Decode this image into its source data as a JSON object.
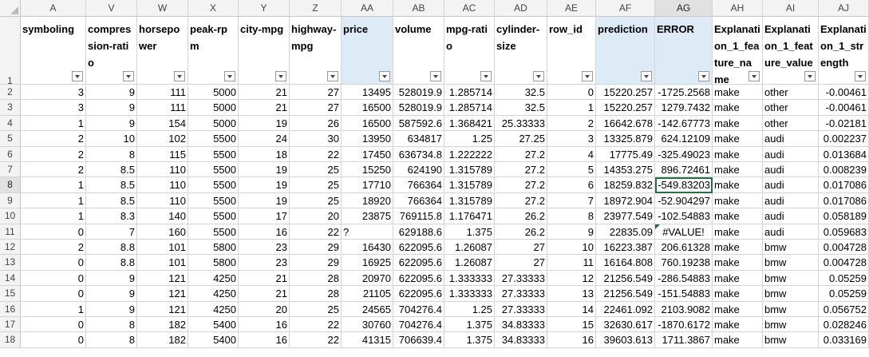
{
  "columns": [
    {
      "letter": "A",
      "header": "symboling",
      "blue": false,
      "align": "num"
    },
    {
      "letter": "V",
      "header": "compres sion-ratio",
      "blue": false,
      "align": "num"
    },
    {
      "letter": "W",
      "header": "horsepo wer",
      "blue": false,
      "align": "num"
    },
    {
      "letter": "X",
      "header": "peak-rpm",
      "blue": false,
      "align": "num"
    },
    {
      "letter": "Y",
      "header": "city-mpg",
      "blue": false,
      "align": "num"
    },
    {
      "letter": "Z",
      "header": "highway-mpg",
      "blue": false,
      "align": "num"
    },
    {
      "letter": "AA",
      "header": "price",
      "blue": true,
      "align": "num"
    },
    {
      "letter": "AB",
      "header": "volume",
      "blue": false,
      "align": "num"
    },
    {
      "letter": "AC",
      "header": "mpg-ratio",
      "blue": false,
      "align": "num"
    },
    {
      "letter": "AD",
      "header": "cylinder-size",
      "blue": false,
      "align": "num"
    },
    {
      "letter": "AE",
      "header": "row_id",
      "blue": false,
      "align": "num"
    },
    {
      "letter": "AF",
      "header": "prediction",
      "blue": true,
      "align": "num"
    },
    {
      "letter": "AG",
      "header": "ERROR",
      "blue": true,
      "align": "num"
    },
    {
      "letter": "AH",
      "header": "Explanation_1_feature_name",
      "blue": false,
      "align": "txt"
    },
    {
      "letter": "AI",
      "header": "Explanation_1_feature_value",
      "blue": false,
      "align": "txt"
    },
    {
      "letter": "AJ",
      "header": "Explanation_1_strength",
      "blue": false,
      "align": "num"
    }
  ],
  "header_row_number": "1",
  "active_cell": {
    "row": 8,
    "col": "AG"
  },
  "rows": [
    {
      "n": "2",
      "v": [
        "3",
        "9",
        "111",
        "5000",
        "21",
        "27",
        "13495",
        "528019.9",
        "1.285714",
        "32.5",
        "0",
        "15220.257",
        "-1725.2568",
        "make",
        "other",
        "-0.00461"
      ]
    },
    {
      "n": "3",
      "v": [
        "3",
        "9",
        "111",
        "5000",
        "21",
        "27",
        "16500",
        "528019.9",
        "1.285714",
        "32.5",
        "1",
        "15220.257",
        "1279.7432",
        "make",
        "other",
        "-0.00461"
      ]
    },
    {
      "n": "4",
      "v": [
        "1",
        "9",
        "154",
        "5000",
        "19",
        "26",
        "16500",
        "587592.6",
        "1.368421",
        "25.33333",
        "2",
        "16642.678",
        "-142.67773",
        "make",
        "other",
        "-0.02181"
      ]
    },
    {
      "n": "5",
      "v": [
        "2",
        "10",
        "102",
        "5500",
        "24",
        "30",
        "13950",
        "634817",
        "1.25",
        "27.25",
        "3",
        "13325.879",
        "624.12109",
        "make",
        "audi",
        "0.002237"
      ]
    },
    {
      "n": "6",
      "v": [
        "2",
        "8",
        "115",
        "5500",
        "18",
        "22",
        "17450",
        "636734.8",
        "1.222222",
        "27.2",
        "4",
        "17775.49",
        "-325.49023",
        "make",
        "audi",
        "0.013684"
      ]
    },
    {
      "n": "7",
      "v": [
        "2",
        "8.5",
        "110",
        "5500",
        "19",
        "25",
        "15250",
        "624190",
        "1.315789",
        "27.2",
        "5",
        "14353.275",
        "896.72461",
        "make",
        "audi",
        "0.008239"
      ]
    },
    {
      "n": "8",
      "v": [
        "1",
        "8.5",
        "110",
        "5500",
        "19",
        "25",
        "17710",
        "766364",
        "1.315789",
        "27.2",
        "6",
        "18259.832",
        "-549.83203",
        "make",
        "audi",
        "0.017086"
      ]
    },
    {
      "n": "9",
      "v": [
        "1",
        "8.5",
        "110",
        "5500",
        "19",
        "25",
        "18920",
        "766364",
        "1.315789",
        "27.2",
        "7",
        "18972.904",
        "-52.904297",
        "make",
        "audi",
        "0.017086"
      ]
    },
    {
      "n": "10",
      "v": [
        "1",
        "8.3",
        "140",
        "5500",
        "17",
        "20",
        "23875",
        "769115.8",
        "1.176471",
        "26.2",
        "8",
        "23977.549",
        "-102.54883",
        "make",
        "audi",
        "0.058189"
      ]
    },
    {
      "n": "11",
      "v": [
        "0",
        "7",
        "160",
        "5500",
        "16",
        "22",
        "?",
        "629188.6",
        "1.375",
        "26.2",
        "9",
        "22835.09",
        "#VALUE!",
        "make",
        "audi",
        "0.059683"
      ]
    },
    {
      "n": "12",
      "v": [
        "2",
        "8.8",
        "101",
        "5800",
        "23",
        "29",
        "16430",
        "622095.6",
        "1.26087",
        "27",
        "10",
        "16223.387",
        "206.61328",
        "make",
        "bmw",
        "0.004728"
      ]
    },
    {
      "n": "13",
      "v": [
        "0",
        "8.8",
        "101",
        "5800",
        "23",
        "29",
        "16925",
        "622095.6",
        "1.26087",
        "27",
        "11",
        "16164.808",
        "760.19238",
        "make",
        "bmw",
        "0.004728"
      ]
    },
    {
      "n": "14",
      "v": [
        "0",
        "9",
        "121",
        "4250",
        "21",
        "28",
        "20970",
        "622095.6",
        "1.333333",
        "27.33333",
        "12",
        "21256.549",
        "-286.54883",
        "make",
        "bmw",
        "0.05259"
      ]
    },
    {
      "n": "15",
      "v": [
        "0",
        "9",
        "121",
        "4250",
        "21",
        "28",
        "21105",
        "622095.6",
        "1.333333",
        "27.33333",
        "13",
        "21256.549",
        "-151.54883",
        "make",
        "bmw",
        "0.05259"
      ]
    },
    {
      "n": "16",
      "v": [
        "1",
        "9",
        "121",
        "4250",
        "20",
        "25",
        "24565",
        "704276.4",
        "1.25",
        "27.33333",
        "14",
        "22461.092",
        "2103.9082",
        "make",
        "bmw",
        "0.056752"
      ]
    },
    {
      "n": "17",
      "v": [
        "0",
        "8",
        "182",
        "5400",
        "16",
        "22",
        "30760",
        "704276.4",
        "1.375",
        "34.83333",
        "15",
        "32630.617",
        "-1870.6172",
        "make",
        "bmw",
        "0.028246"
      ]
    },
    {
      "n": "18",
      "v": [
        "0",
        "8",
        "182",
        "5400",
        "16",
        "22",
        "41315",
        "706639.4",
        "1.375",
        "34.83333",
        "16",
        "39603.613",
        "1711.3867",
        "make",
        "bmw",
        "0.033169"
      ]
    }
  ],
  "icons": {
    "filter": "filter-dropdown-icon",
    "error": "error-indicator-icon"
  }
}
